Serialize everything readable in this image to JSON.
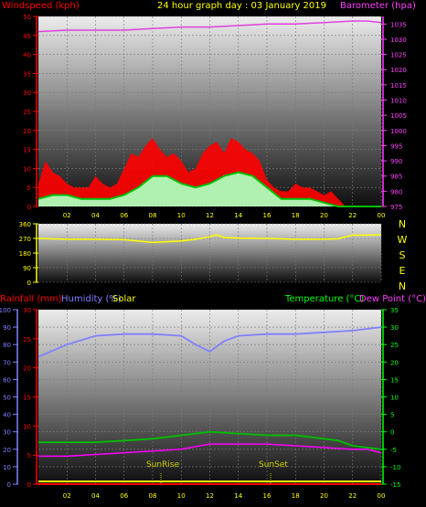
{
  "header": {
    "title": "24 hour graph day : 03 January 2019",
    "left_label": "Windspeed (kph)",
    "right_label": "Barometer (hpa)"
  },
  "colors": {
    "windspeed": "#ff0000",
    "gust": "#ff0000",
    "avg_wind": "#00c000",
    "wind_fill": "#b0f0b0",
    "barometer": "#e040e0",
    "direction": "#ffff00",
    "humidity": "#8080ff",
    "temperature": "#00c000",
    "dewpoint": "#ff00ff",
    "solar": "#ffff00",
    "rainfall": "#ff0000",
    "title": "#ffff00"
  },
  "panel3_labels": {
    "rainfall": "Rainfall (mm)",
    "humidity": "Humidity (%)",
    "solar": "Solar",
    "temperature": "Temperature (°C)",
    "dewpoint": "Dew Point (°C)",
    "sunrise": "SunRise",
    "sunset": "SunSet"
  },
  "compass": [
    "N",
    "W",
    "S",
    "E",
    "N"
  ],
  "chart_data": [
    {
      "type": "line",
      "id": "wind-baro",
      "title": "24 hour graph day : 03 January 2019",
      "xticks": [
        "02",
        "04",
        "06",
        "08",
        "10",
        "12",
        "14",
        "16",
        "18",
        "20",
        "22",
        "00"
      ],
      "xlim": [
        0,
        24
      ],
      "ylim_left": [
        0,
        50
      ],
      "ylim_right": [
        975,
        1037.5
      ],
      "yticks_left": [
        0,
        5,
        10,
        15,
        20,
        25,
        30,
        35,
        40,
        45,
        50
      ],
      "yticks_right": [
        975,
        980,
        985,
        990,
        995,
        1000,
        1005,
        1010,
        1015,
        1020,
        1025,
        1030,
        1035
      ],
      "ylabel_left": "Windspeed (kph)",
      "ylabel_right": "Barometer (hpa)",
      "series": [
        {
          "name": "Gust",
          "x": [
            0,
            0.5,
            1,
            1.5,
            2,
            2.5,
            3,
            3.5,
            4,
            4.5,
            5,
            5.5,
            6,
            6.5,
            7,
            7.5,
            8,
            8.5,
            9,
            9.5,
            10,
            10.5,
            11,
            11.5,
            12,
            12.5,
            13,
            13.5,
            14,
            14.5,
            15,
            15.5,
            16,
            16.5,
            17,
            17.5,
            18,
            18.5,
            19,
            19.5,
            20,
            20.5,
            21,
            21.5,
            22,
            22.5,
            23,
            23.5,
            24
          ],
          "values": [
            6,
            12,
            9,
            8,
            6,
            5,
            5,
            5,
            8,
            6,
            5,
            6,
            10,
            14,
            13,
            16,
            18,
            15,
            13,
            14,
            12,
            9,
            10,
            14,
            16,
            17,
            14,
            18,
            17,
            15,
            14,
            12,
            7,
            5,
            4,
            4,
            6,
            5,
            5,
            4,
            3,
            4,
            2,
            0,
            0,
            0,
            0,
            0,
            0
          ]
        },
        {
          "name": "Average",
          "x": [
            0,
            1,
            2,
            3,
            4,
            5,
            6,
            7,
            8,
            9,
            10,
            11,
            12,
            13,
            14,
            15,
            16,
            17,
            18,
            19,
            20,
            21,
            22,
            23,
            24
          ],
          "values": [
            2,
            3,
            3,
            2,
            2,
            2,
            3,
            5,
            8,
            8,
            6,
            5,
            6,
            8,
            9,
            8,
            5,
            2,
            2,
            2,
            1,
            0,
            0,
            0,
            0
          ]
        },
        {
          "name": "Barometer",
          "x": [
            0,
            2,
            4,
            6,
            8,
            10,
            12,
            14,
            16,
            18,
            20,
            22,
            23,
            24
          ],
          "values": [
            1032.5,
            1033,
            1033,
            1033,
            1033.5,
            1034,
            1034,
            1034.5,
            1035,
            1035,
            1035.5,
            1036,
            1036,
            1035.5
          ]
        }
      ]
    },
    {
      "type": "line",
      "id": "wind-direction",
      "xlim": [
        0,
        24
      ],
      "ylim": [
        0,
        360
      ],
      "yticks": [
        0,
        90,
        180,
        270,
        360
      ],
      "series": [
        {
          "name": "Direction",
          "x": [
            0,
            2,
            4,
            6,
            8,
            9,
            10,
            11,
            12,
            12.5,
            13,
            14,
            16,
            18,
            20,
            21,
            22,
            23,
            24
          ],
          "values": [
            270,
            265,
            265,
            262,
            245,
            250,
            255,
            265,
            280,
            292,
            275,
            272,
            270,
            265,
            265,
            268,
            290,
            290,
            292
          ]
        }
      ]
    },
    {
      "type": "line",
      "id": "temp-hum",
      "xticks": [
        "02",
        "04",
        "06",
        "08",
        "10",
        "12",
        "14",
        "16",
        "18",
        "20",
        "22",
        "00"
      ],
      "xlim": [
        0,
        24
      ],
      "ylim_left": [
        0,
        100
      ],
      "ylim_mid": [
        0,
        30
      ],
      "ylim_right": [
        -15,
        35
      ],
      "yticks_left": [
        0,
        10,
        20,
        30,
        40,
        50,
        60,
        70,
        80,
        90,
        100
      ],
      "yticks_mid": [
        0,
        5,
        10,
        15,
        20,
        25,
        30
      ],
      "yticks_right": [
        -15,
        -10,
        -5,
        0,
        5,
        10,
        15,
        20,
        25,
        30,
        35
      ],
      "series": [
        {
          "name": "Humidity",
          "x": [
            0,
            2,
            4,
            6,
            8,
            10,
            11,
            12,
            13,
            14,
            16,
            18,
            20,
            22,
            24
          ],
          "values": [
            73,
            80,
            85,
            86,
            86,
            85,
            80,
            76,
            82,
            85,
            86,
            86,
            87,
            88,
            90
          ]
        },
        {
          "name": "Temperature",
          "x": [
            0,
            2,
            4,
            6,
            8,
            10,
            12,
            14,
            16,
            18,
            20,
            21,
            22,
            23,
            24
          ],
          "values": [
            -3,
            -3,
            -3,
            -2.5,
            -2,
            -1,
            0,
            -0.5,
            -1,
            -1,
            -2,
            -2.5,
            -4,
            -4.5,
            -5
          ]
        },
        {
          "name": "Dew Point",
          "x": [
            0,
            2,
            4,
            6,
            8,
            10,
            12,
            14,
            16,
            18,
            20,
            22,
            23,
            24
          ],
          "values": [
            -7,
            -7,
            -6.5,
            -6,
            -5.5,
            -5,
            -3.5,
            -3.5,
            -3.5,
            -4,
            -4.5,
            -5,
            -5,
            -6
          ]
        },
        {
          "name": "Rainfall",
          "x": [
            0,
            24
          ],
          "values": [
            0,
            0
          ]
        }
      ]
    }
  ]
}
